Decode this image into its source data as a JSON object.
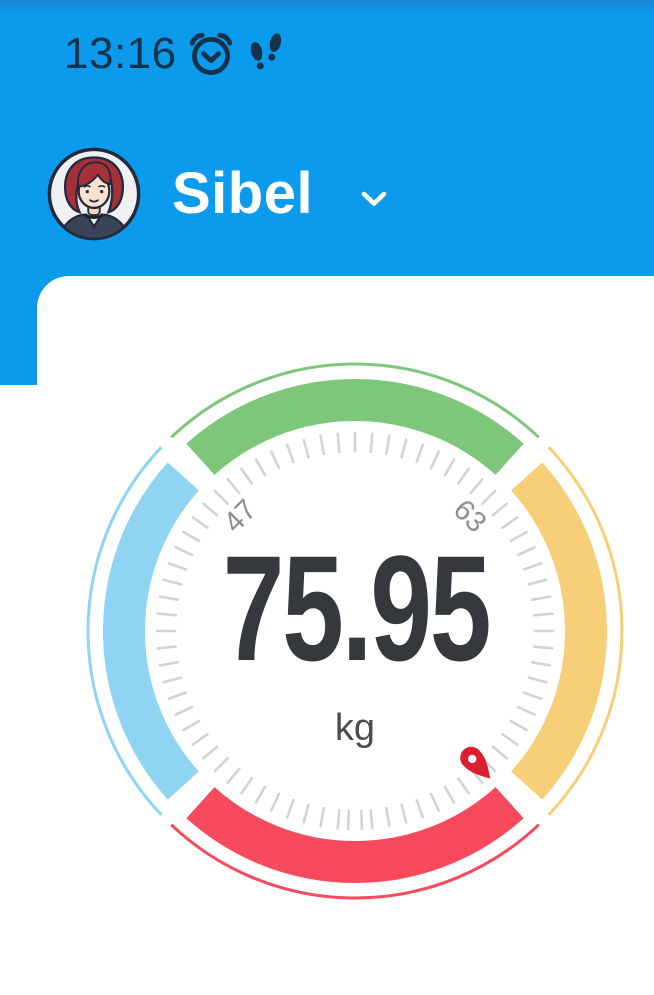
{
  "status_bar": {
    "time": "13:16",
    "icons": [
      "alarm-icon",
      "steps-icon"
    ]
  },
  "header": {
    "user_name": "Sibel",
    "chevron": "chevron-down-icon"
  },
  "measurement": {
    "value": "75.95",
    "unit": "kg"
  },
  "chart_data": {
    "type": "gauge",
    "title": "body weight dial",
    "value": "75.95",
    "unit": "kg",
    "value_color": "#35393E",
    "unit_color": "#4A4E52",
    "center": 280,
    "ring": {
      "radius": 231,
      "width": 42
    },
    "outline": {
      "radius": 267,
      "width": 3,
      "extra_deg": 1.5
    },
    "ticks": {
      "radius_inner": 180,
      "radius_outer": 198,
      "step_deg": 5,
      "color": "#D3D3D3",
      "width": 2.6,
      "double_at_deg": 180,
      "double_offset_deg": 2
    },
    "label_radius": 162,
    "label_color": "#8E8E8E",
    "label_font_size": 29,
    "labels": [
      {
        "text": "47",
        "angle_deg": -45
      },
      {
        "text": "63",
        "angle_deg": 45
      }
    ],
    "segments": [
      {
        "name": "green",
        "color": "#7DC67A",
        "start_deg": -42,
        "end_deg": 42
      },
      {
        "name": "yellow",
        "color": "#F6CF78",
        "start_deg": 48,
        "end_deg": 132
      },
      {
        "name": "red",
        "color": "#F74A5C",
        "start_deg": 138,
        "end_deg": 222
      },
      {
        "name": "blue",
        "color": "#8FD5F3",
        "start_deg": 228,
        "end_deg": 312
      }
    ],
    "pointer": {
      "angle_deg": 137.5,
      "color": "#DC1F2F",
      "head_radius": 172,
      "tip_radius": 200
    }
  },
  "colors": {
    "background_blue": "#0C9AEC",
    "status_ink": "#12334A",
    "card_white": "#FFFFFF"
  }
}
